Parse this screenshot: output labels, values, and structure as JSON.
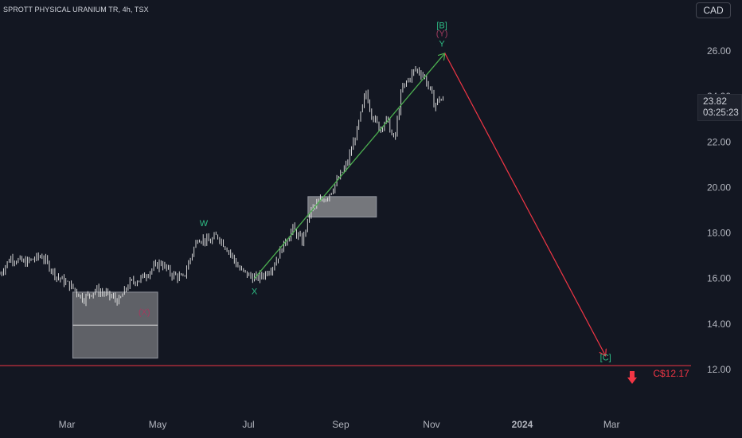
{
  "header": {
    "symbol_title": "SPROTT PHYSICAL URANIUM TR, 4h, TSX",
    "currency": "CAD"
  },
  "price_label": {
    "price": "23.82",
    "countdown": "03:25:23"
  },
  "colors": {
    "background": "#131722",
    "axis_text": "#b2b5be",
    "candles": "#e8e8e8",
    "wave_green": "#2ebd85",
    "trend_green": "#4caf50",
    "forecast_red": "#f23645",
    "wave_maroon": "#a23b5f",
    "zone_fill": "#c7c7c7"
  },
  "chart_data": {
    "type": "line",
    "x_axis_labels": [
      "Mar",
      "May",
      "Jul",
      "Sep",
      "Nov",
      "2024",
      "Mar"
    ],
    "y_ticks": [
      "26.00",
      "24.00",
      "22.00",
      "20.00",
      "18.00",
      "16.00",
      "14.00",
      "12.00"
    ],
    "ylim": [
      11.0,
      28.5
    ],
    "grid": false,
    "series": [
      {
        "x": [
          "2023-01-15",
          "2023-01-22",
          "2023-02-01",
          "2023-02-12",
          "2023-02-22",
          "2023-03-05",
          "2023-03-12",
          "2023-03-20",
          "2023-03-28",
          "2023-04-05",
          "2023-04-12",
          "2023-04-20",
          "2023-04-27",
          "2023-05-03",
          "2023-05-10",
          "2023-05-18",
          "2023-05-28",
          "2023-06-05",
          "2023-06-10",
          "2023-06-18",
          "2023-06-25",
          "2023-07-02",
          "2023-07-06",
          "2023-07-12",
          "2023-07-18",
          "2023-07-24",
          "2023-07-31",
          "2023-08-06",
          "2023-08-12",
          "2023-08-18",
          "2023-08-23",
          "2023-08-28",
          "2023-09-05",
          "2023-09-12",
          "2023-09-18",
          "2023-09-22",
          "2023-09-27",
          "2023-10-02",
          "2023-10-07",
          "2023-10-12",
          "2023-10-17",
          "2023-10-21",
          "2023-10-26",
          "2023-10-31",
          "2023-11-03",
          "2023-11-06",
          "2023-11-09"
        ],
        "values": [
          16.2,
          16.9,
          16.7,
          17.0,
          16.1,
          15.6,
          15.1,
          15.5,
          15.3,
          15.0,
          15.8,
          16.0,
          16.4,
          16.7,
          16.2,
          16.0,
          17.8,
          17.6,
          17.9,
          17.2,
          16.4,
          16.1,
          16.0,
          16.2,
          16.6,
          17.4,
          18.2,
          17.6,
          19.0,
          19.4,
          19.6,
          20.1,
          21.0,
          22.5,
          24.2,
          23.2,
          22.6,
          23.0,
          22.0,
          24.3,
          24.8,
          25.2,
          25.0,
          24.3,
          23.6,
          23.9,
          23.82
        ]
      }
    ],
    "projection": {
      "x": [
        "2023-11-10",
        "2024-02-26"
      ],
      "values": [
        25.9,
        12.6
      ]
    },
    "uptrend": {
      "x": [
        "2023-07-05",
        "2023-11-10"
      ],
      "values": [
        16.0,
        25.9
      ]
    },
    "support_level": 12.17,
    "support_label": "C$12.17",
    "zones": [
      {
        "x": [
          "2023-03-05",
          "2023-05-01"
        ],
        "values": [
          15.4,
          12.5
        ],
        "midline": 13.95
      },
      {
        "x": [
          "2023-08-10",
          "2023-09-25"
        ],
        "values": [
          19.6,
          18.7
        ]
      }
    ],
    "wave_labels": [
      {
        "text": "W",
        "x": "2023-06-01",
        "value": 18.3,
        "color": "wave_green"
      },
      {
        "text": "X",
        "x": "2023-07-05",
        "value": 15.3,
        "color": "wave_green"
      },
      {
        "text": "Y",
        "x": "2023-11-08",
        "value": 26.2,
        "color": "wave_green"
      },
      {
        "text": "(Y)",
        "x": "2023-11-08",
        "value": 26.65,
        "color": "wave_maroon"
      },
      {
        "text": "[B]",
        "x": "2023-11-08",
        "value": 27.0,
        "color": "wave_green"
      },
      {
        "text": "[C]",
        "x": "2024-02-26",
        "value": 12.4,
        "color": "wave_green"
      },
      {
        "text": "(X)",
        "x": "2023-04-22",
        "value": 14.4,
        "color": "wave_maroon"
      }
    ]
  }
}
